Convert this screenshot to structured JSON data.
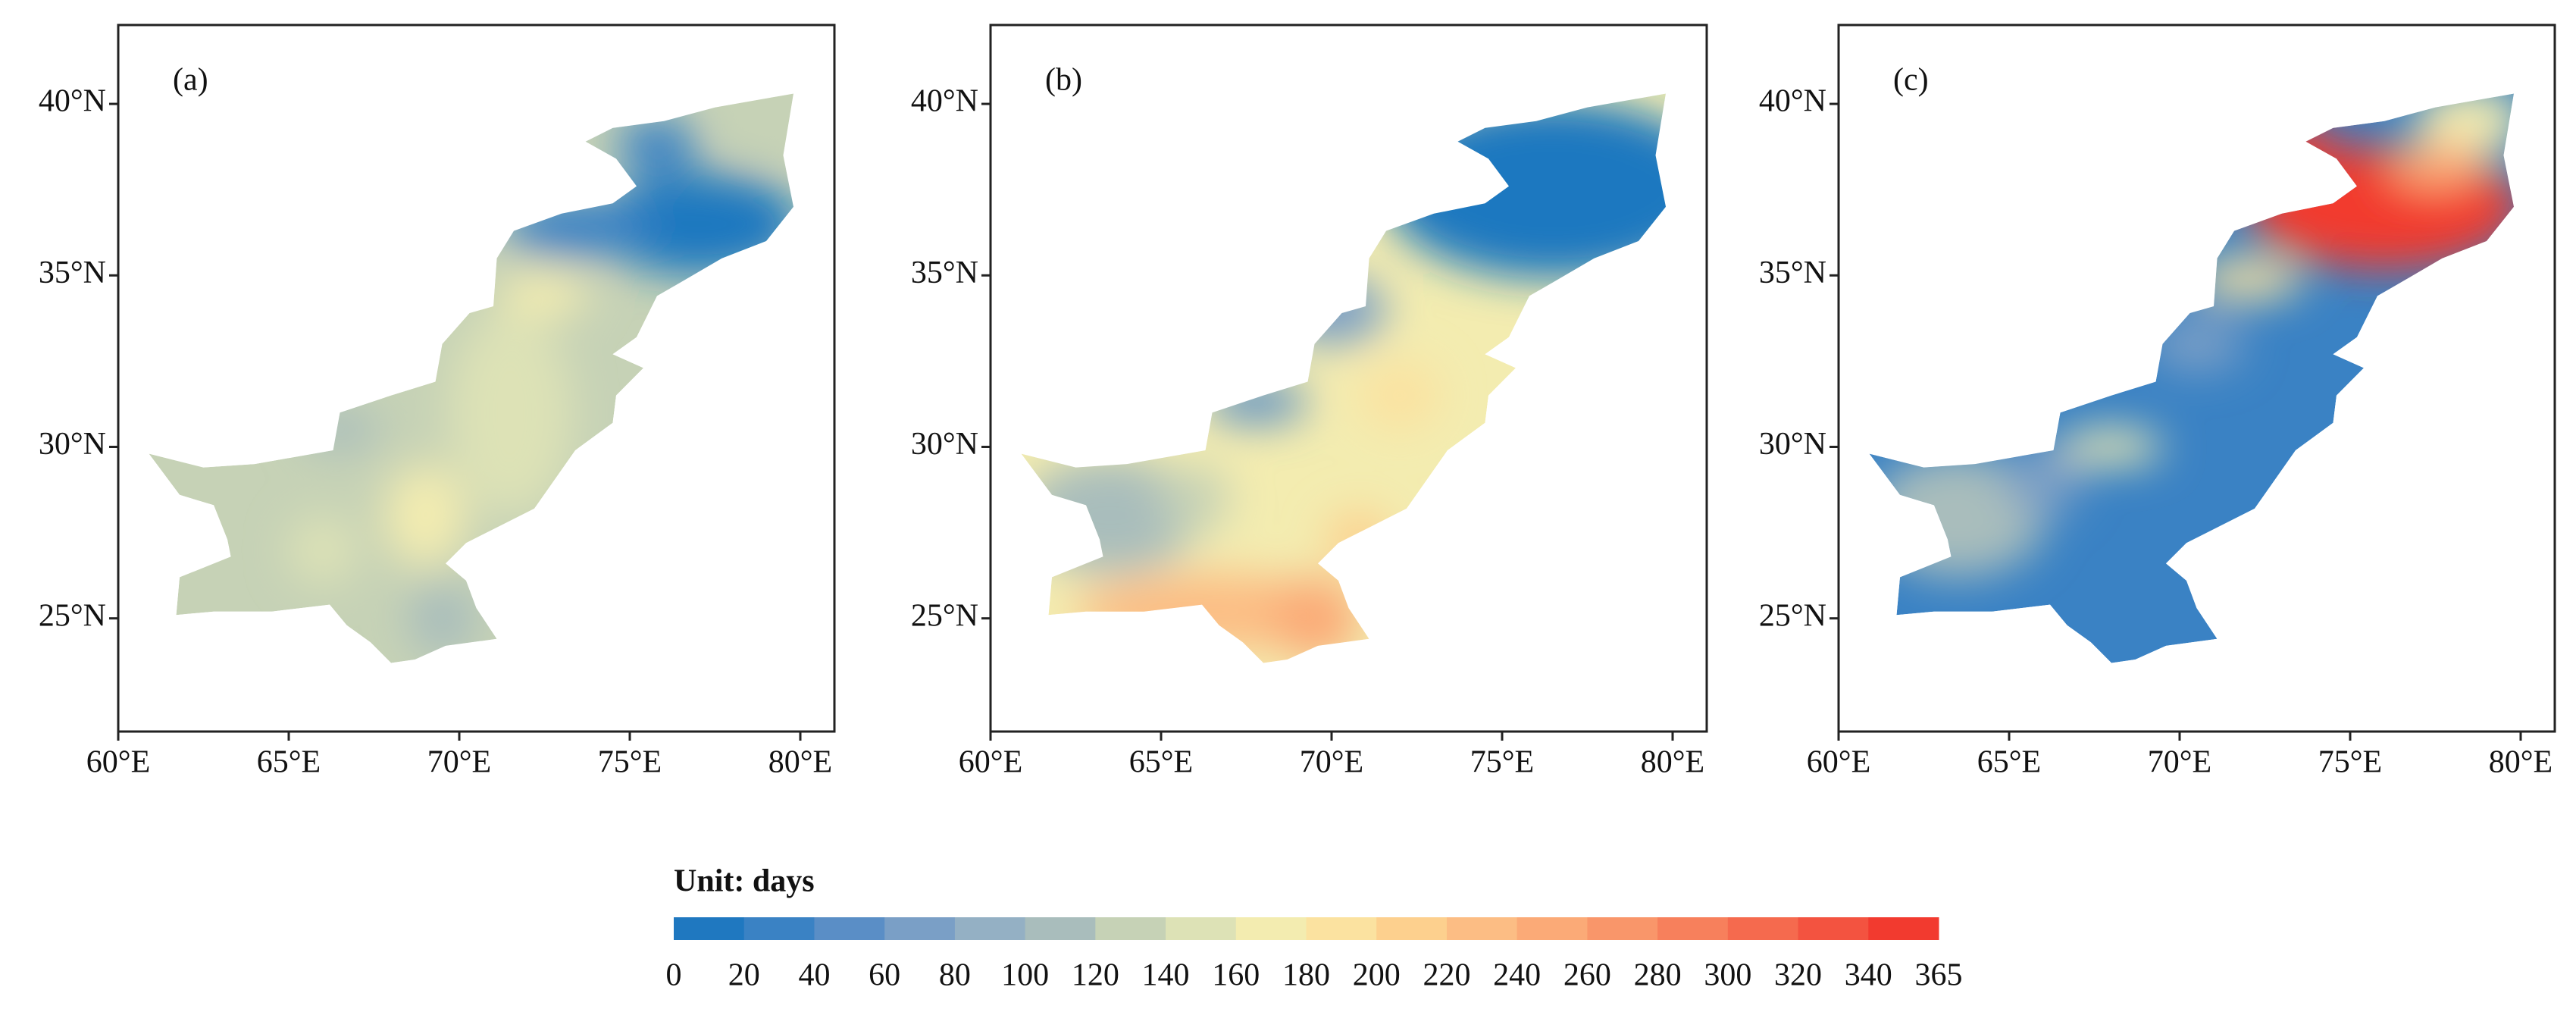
{
  "panels": [
    {
      "label": "(a)"
    },
    {
      "label": "(b)"
    },
    {
      "label": "(c)"
    }
  ],
  "xlim": [
    60,
    81
  ],
  "ylim": [
    21.7,
    42.3
  ],
  "lon_ticks": [
    {
      "value": 60,
      "label": "60°E"
    },
    {
      "value": 65,
      "label": "65°E"
    },
    {
      "value": 70,
      "label": "70°E"
    },
    {
      "value": 75,
      "label": "75°E"
    },
    {
      "value": 80,
      "label": "80°E"
    }
  ],
  "lat_ticks": [
    {
      "value": 25,
      "label": "25°N"
    },
    {
      "value": 30,
      "label": "30°N"
    },
    {
      "value": 35,
      "label": "35°N"
    },
    {
      "value": 40,
      "label": "40°N"
    }
  ],
  "colorbar": {
    "title": "Unit: days",
    "ticks": [
      0,
      20,
      40,
      60,
      80,
      100,
      120,
      140,
      160,
      180,
      200,
      220,
      240,
      260,
      280,
      300,
      320,
      340,
      365
    ],
    "colors": [
      "#1f78c0",
      "#3a82c4",
      "#5a8ec6",
      "#7a9fc6",
      "#94b0c4",
      "#a9bdbc",
      "#c6d2b6",
      "#dde2b6",
      "#f3ecb0",
      "#fbe2a0",
      "#fdd08e",
      "#fcbd84",
      "#fbaa77",
      "#f9966a",
      "#f7805c",
      "#f56a4e",
      "#f35340",
      "#f23a2f"
    ]
  }
}
